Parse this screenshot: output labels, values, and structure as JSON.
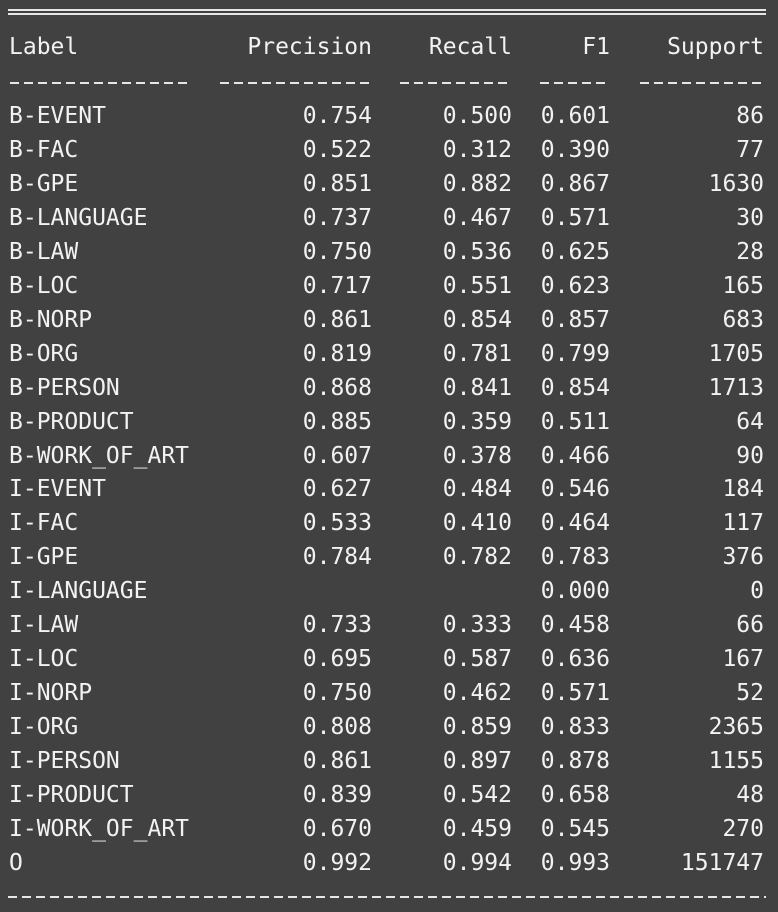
{
  "header": {
    "label": "Label",
    "precision": "Precision",
    "recall": "Recall",
    "f1": "F1",
    "support": "Support"
  },
  "rows": [
    {
      "label": "B-EVENT",
      "precision": "0.754",
      "recall": "0.500",
      "f1": "0.601",
      "support": "86"
    },
    {
      "label": "B-FAC",
      "precision": "0.522",
      "recall": "0.312",
      "f1": "0.390",
      "support": "77"
    },
    {
      "label": "B-GPE",
      "precision": "0.851",
      "recall": "0.882",
      "f1": "0.867",
      "support": "1630"
    },
    {
      "label": "B-LANGUAGE",
      "precision": "0.737",
      "recall": "0.467",
      "f1": "0.571",
      "support": "30"
    },
    {
      "label": "B-LAW",
      "precision": "0.750",
      "recall": "0.536",
      "f1": "0.625",
      "support": "28"
    },
    {
      "label": "B-LOC",
      "precision": "0.717",
      "recall": "0.551",
      "f1": "0.623",
      "support": "165"
    },
    {
      "label": "B-NORP",
      "precision": "0.861",
      "recall": "0.854",
      "f1": "0.857",
      "support": "683"
    },
    {
      "label": "B-ORG",
      "precision": "0.819",
      "recall": "0.781",
      "f1": "0.799",
      "support": "1705"
    },
    {
      "label": "B-PERSON",
      "precision": "0.868",
      "recall": "0.841",
      "f1": "0.854",
      "support": "1713"
    },
    {
      "label": "B-PRODUCT",
      "precision": "0.885",
      "recall": "0.359",
      "f1": "0.511",
      "support": "64"
    },
    {
      "label": "B-WORK_OF_ART",
      "precision": "0.607",
      "recall": "0.378",
      "f1": "0.466",
      "support": "90"
    },
    {
      "label": "I-EVENT",
      "precision": "0.627",
      "recall": "0.484",
      "f1": "0.546",
      "support": "184"
    },
    {
      "label": "I-FAC",
      "precision": "0.533",
      "recall": "0.410",
      "f1": "0.464",
      "support": "117"
    },
    {
      "label": "I-GPE",
      "precision": "0.784",
      "recall": "0.782",
      "f1": "0.783",
      "support": "376"
    },
    {
      "label": "I-LANGUAGE",
      "precision": "",
      "recall": "",
      "f1": "0.000",
      "support": "0"
    },
    {
      "label": "I-LAW",
      "precision": "0.733",
      "recall": "0.333",
      "f1": "0.458",
      "support": "66"
    },
    {
      "label": "I-LOC",
      "precision": "0.695",
      "recall": "0.587",
      "f1": "0.636",
      "support": "167"
    },
    {
      "label": "I-NORP",
      "precision": "0.750",
      "recall": "0.462",
      "f1": "0.571",
      "support": "52"
    },
    {
      "label": "I-ORG",
      "precision": "0.808",
      "recall": "0.859",
      "f1": "0.833",
      "support": "2365"
    },
    {
      "label": "I-PERSON",
      "precision": "0.861",
      "recall": "0.897",
      "f1": "0.878",
      "support": "1155"
    },
    {
      "label": "I-PRODUCT",
      "precision": "0.839",
      "recall": "0.542",
      "f1": "0.658",
      "support": "48"
    },
    {
      "label": "I-WORK_OF_ART",
      "precision": "0.670",
      "recall": "0.459",
      "f1": "0.545",
      "support": "270"
    },
    {
      "label": "O",
      "precision": "0.992",
      "recall": "0.994",
      "f1": "0.993",
      "support": "151747"
    }
  ],
  "colors": {
    "background": "#414141",
    "text": "#f2f2f2"
  }
}
